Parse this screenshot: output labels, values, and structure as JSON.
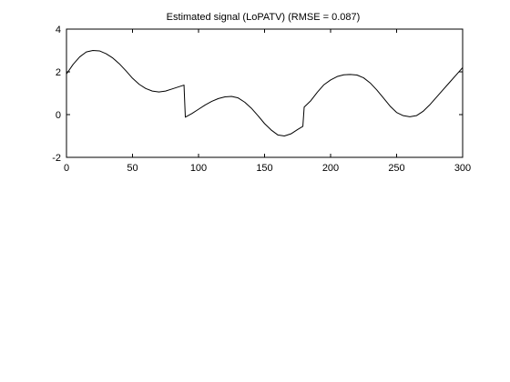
{
  "chart_data": {
    "type": "line",
    "title": "Estimated signal (LoPATV) (RMSE = 0.087)",
    "xlabel": "",
    "ylabel": "",
    "xlim": [
      0,
      300
    ],
    "ylim": [
      -2,
      4
    ],
    "xticks": [
      0,
      50,
      100,
      150,
      200,
      250,
      300
    ],
    "yticks": [
      -2,
      0,
      2,
      4
    ],
    "grid": false,
    "legend": "none",
    "line_color": "#000000",
    "series": [
      {
        "x": [
          0,
          5,
          10,
          15,
          20,
          25,
          30,
          35,
          40,
          45,
          50,
          55,
          60,
          65,
          70,
          75,
          80,
          85,
          89,
          90,
          95,
          100,
          105,
          110,
          115,
          120,
          125,
          130,
          135,
          140,
          145,
          150,
          155,
          160,
          165,
          170,
          175,
          179,
          180,
          185,
          190,
          195,
          200,
          205,
          210,
          215,
          220,
          225,
          230,
          235,
          240,
          245,
          250,
          255,
          260,
          265,
          270,
          275,
          280,
          285,
          290,
          295,
          300
        ],
        "y": [
          1.9,
          2.35,
          2.7,
          2.93,
          3.0,
          2.98,
          2.85,
          2.65,
          2.38,
          2.05,
          1.7,
          1.42,
          1.22,
          1.1,
          1.06,
          1.1,
          1.2,
          1.3,
          1.38,
          -0.12,
          0.05,
          0.25,
          0.45,
          0.62,
          0.75,
          0.83,
          0.85,
          0.78,
          0.58,
          0.3,
          -0.05,
          -0.42,
          -0.72,
          -0.95,
          -1.0,
          -0.9,
          -0.7,
          -0.55,
          0.35,
          0.65,
          1.05,
          1.4,
          1.62,
          1.78,
          1.86,
          1.88,
          1.85,
          1.72,
          1.48,
          1.15,
          0.78,
          0.4,
          0.1,
          -0.05,
          -0.1,
          -0.05,
          0.15,
          0.45,
          0.8,
          1.15,
          1.5,
          1.85,
          2.2
        ]
      }
    ]
  }
}
